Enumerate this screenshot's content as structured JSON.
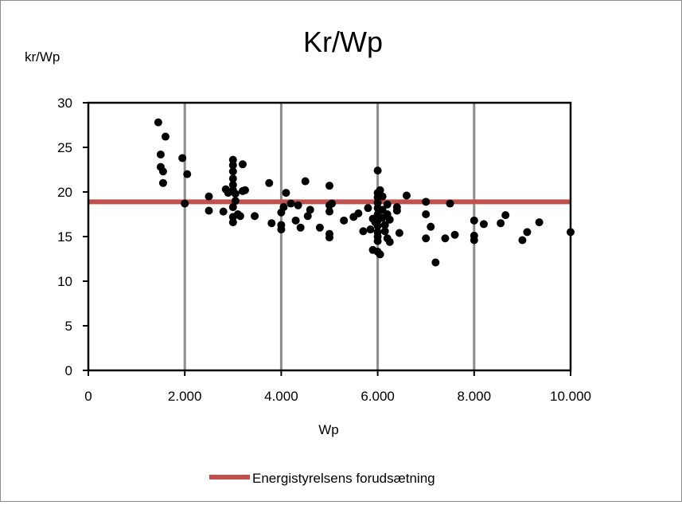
{
  "chart_data": {
    "type": "scatter",
    "title": "Kr/Wp",
    "ylabel": "kr/Wp",
    "xlabel": "Wp",
    "xlim": [
      0,
      10000
    ],
    "ylim": [
      0,
      30
    ],
    "x_ticks": [
      0,
      2000,
      4000,
      6000,
      8000,
      10000
    ],
    "x_tick_labels": [
      "0",
      "2.000",
      "4.000",
      "6.000",
      "8.000",
      "10.000"
    ],
    "y_ticks": [
      0,
      5,
      10,
      15,
      20,
      25,
      30
    ],
    "y_tick_labels": [
      "0",
      "5",
      "10",
      "15",
      "20",
      "25",
      "30"
    ],
    "grid": "vertical",
    "legend_position": "bottom",
    "reference_line": {
      "name": "Energistyrelsens forudsætning",
      "y": 18.9,
      "color": "#c0504d"
    },
    "points_color": "#000000",
    "points": [
      [
        1450,
        27.8
      ],
      [
        1600,
        26.2
      ],
      [
        1500,
        24.2
      ],
      [
        1500,
        22.8
      ],
      [
        1550,
        22.3
      ],
      [
        1550,
        21.0
      ],
      [
        1950,
        23.8
      ],
      [
        2050,
        22.0
      ],
      [
        2000,
        18.7
      ],
      [
        2500,
        19.5
      ],
      [
        2500,
        17.9
      ],
      [
        2800,
        17.8
      ],
      [
        2850,
        20.3
      ],
      [
        2900,
        19.9
      ],
      [
        3000,
        23.6
      ],
      [
        3000,
        23.0
      ],
      [
        3000,
        22.3
      ],
      [
        3000,
        21.5
      ],
      [
        3000,
        20.8
      ],
      [
        3000,
        20.2
      ],
      [
        3050,
        19.8
      ],
      [
        3000,
        18.3
      ],
      [
        3000,
        17.2
      ],
      [
        3000,
        16.6
      ],
      [
        3100,
        17.5
      ],
      [
        3150,
        17.3
      ],
      [
        3200,
        23.1
      ],
      [
        3200,
        20.1
      ],
      [
        3250,
        20.2
      ],
      [
        3050,
        19.0
      ],
      [
        3450,
        17.3
      ],
      [
        3750,
        21.0
      ],
      [
        3800,
        16.5
      ],
      [
        4000,
        16.3
      ],
      [
        4000,
        15.8
      ],
      [
        4000,
        17.7
      ],
      [
        4050,
        18.3
      ],
      [
        4100,
        19.9
      ],
      [
        4200,
        18.7
      ],
      [
        4300,
        16.8
      ],
      [
        4350,
        18.5
      ],
      [
        4400,
        16.0
      ],
      [
        4500,
        21.2
      ],
      [
        4550,
        17.3
      ],
      [
        4600,
        18.0
      ],
      [
        4800,
        16.0
      ],
      [
        5000,
        20.7
      ],
      [
        5000,
        18.5
      ],
      [
        5000,
        17.8
      ],
      [
        5000,
        15.3
      ],
      [
        5000,
        14.9
      ],
      [
        5050,
        18.7
      ],
      [
        5300,
        16.8
      ],
      [
        5500,
        17.2
      ],
      [
        5600,
        17.6
      ],
      [
        5700,
        15.6
      ],
      [
        5800,
        18.2
      ],
      [
        5850,
        15.8
      ],
      [
        5900,
        17.0
      ],
      [
        5900,
        13.5
      ],
      [
        5950,
        16.6
      ],
      [
        6000,
        22.4
      ],
      [
        6000,
        19.9
      ],
      [
        6000,
        19.4
      ],
      [
        6000,
        18.8
      ],
      [
        6000,
        18.2
      ],
      [
        6000,
        17.5
      ],
      [
        6000,
        16.8
      ],
      [
        6000,
        16.2
      ],
      [
        6000,
        15.5
      ],
      [
        6000,
        15.0
      ],
      [
        6000,
        14.5
      ],
      [
        6000,
        13.3
      ],
      [
        6050,
        13.0
      ],
      [
        6050,
        20.2
      ],
      [
        6100,
        19.5
      ],
      [
        6100,
        18.0
      ],
      [
        6100,
        17.1
      ],
      [
        6150,
        16.3
      ],
      [
        6150,
        15.6
      ],
      [
        6200,
        18.6
      ],
      [
        6200,
        17.5
      ],
      [
        6200,
        14.8
      ],
      [
        6250,
        14.4
      ],
      [
        6250,
        16.9
      ],
      [
        6400,
        17.9
      ],
      [
        6400,
        18.3
      ],
      [
        6450,
        15.4
      ],
      [
        6600,
        19.6
      ],
      [
        7000,
        18.9
      ],
      [
        7000,
        17.5
      ],
      [
        7000,
        14.8
      ],
      [
        7100,
        16.1
      ],
      [
        7200,
        12.1
      ],
      [
        7400,
        14.8
      ],
      [
        7500,
        18.7
      ],
      [
        7600,
        15.2
      ],
      [
        8000,
        16.8
      ],
      [
        8000,
        15.1
      ],
      [
        8000,
        14.6
      ],
      [
        8200,
        16.4
      ],
      [
        8550,
        16.5
      ],
      [
        8650,
        17.4
      ],
      [
        9000,
        14.6
      ],
      [
        9100,
        15.5
      ],
      [
        9350,
        16.6
      ],
      [
        10000,
        15.5
      ]
    ]
  }
}
